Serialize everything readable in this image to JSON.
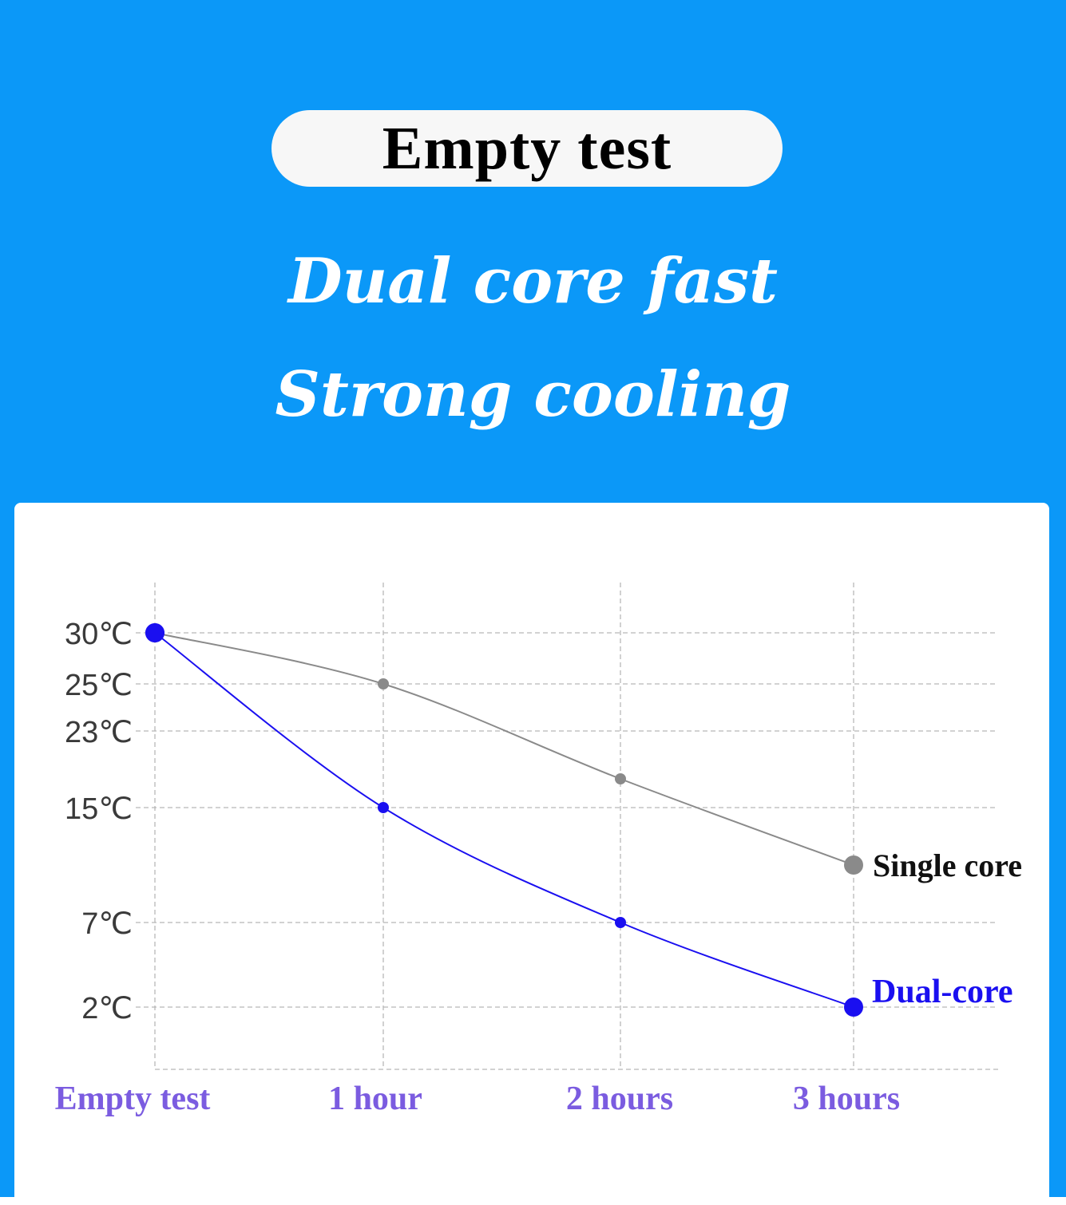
{
  "header": {
    "badge": "Empty test",
    "headline_line1": "Dual core fast",
    "headline_line2": "Strong cooling"
  },
  "colors": {
    "background": "#0b98f8",
    "single_core": "#8a8a8a",
    "dual_core": "#1a0ff0",
    "x_tick_labels": "#7b5ce0",
    "grid": "#b8b8b8"
  },
  "chart_data": {
    "type": "line",
    "categories": [
      "Empty test",
      "1 hour",
      "2 hours",
      "3 hours"
    ],
    "y_ticks": [
      {
        "value": 30,
        "label": "30℃"
      },
      {
        "value": 25,
        "label": "25℃"
      },
      {
        "value": 23,
        "label": "23℃"
      },
      {
        "value": 15,
        "label": "15℃"
      },
      {
        "value": 7,
        "label": "7℃"
      },
      {
        "value": 2,
        "label": "2℃"
      }
    ],
    "series": [
      {
        "name": "Single core",
        "values": [
          30,
          25,
          18,
          11
        ]
      },
      {
        "name": "Dual-core",
        "values": [
          30,
          15,
          7,
          2
        ]
      }
    ],
    "grid": true,
    "legend": "end-of-line labels"
  }
}
